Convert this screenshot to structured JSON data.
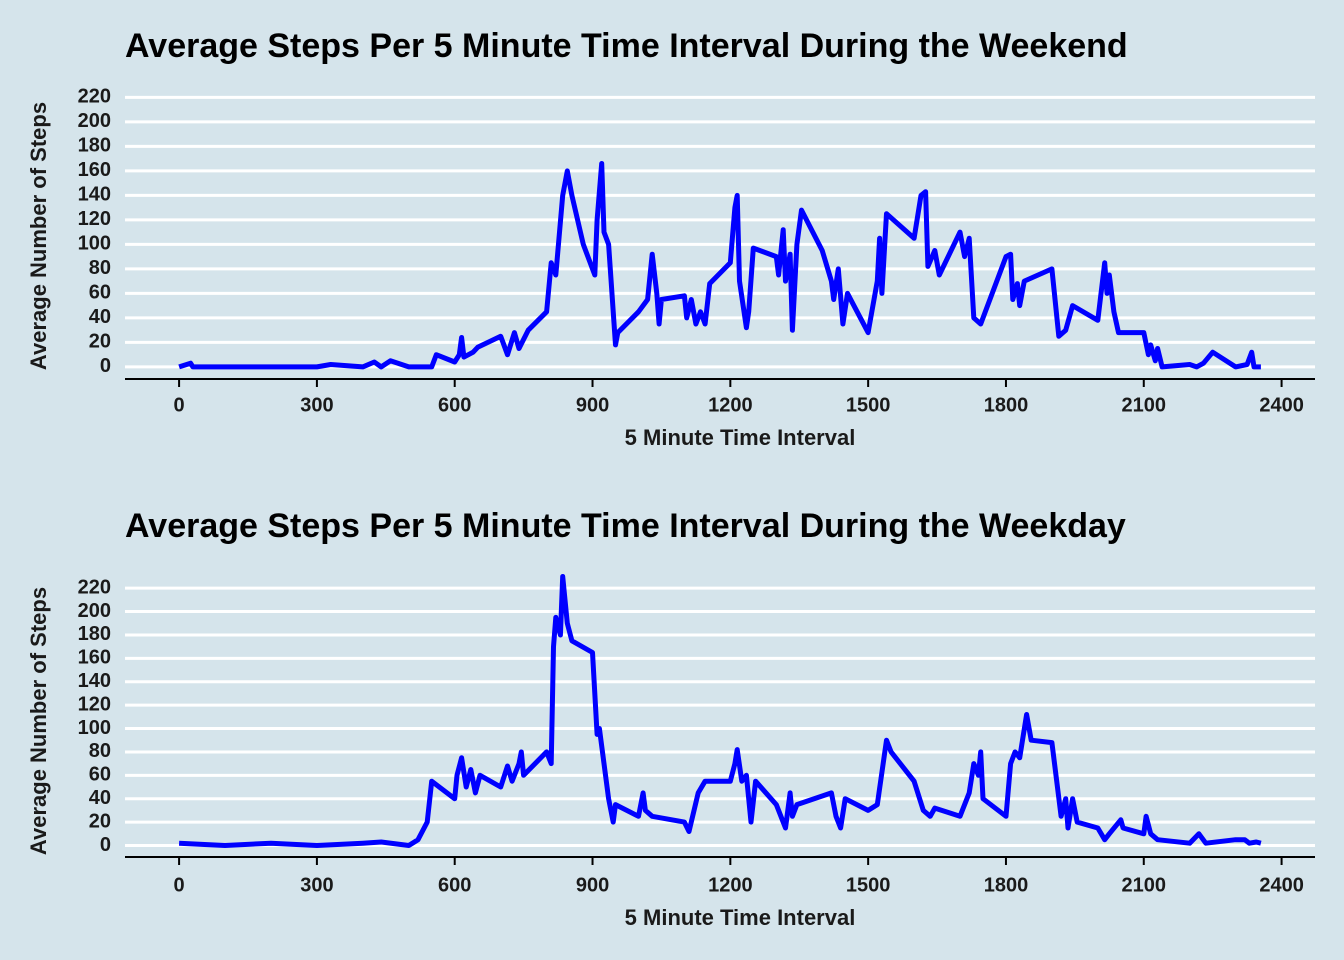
{
  "chart_data": [
    {
      "type": "line",
      "title": "Average Steps Per 5 Minute Time Interval During the Weekend",
      "xlabel": "5 Minute Time Interval",
      "ylabel": "Average Number of Steps",
      "color": "#0000ff",
      "grid": true,
      "xlim": [
        -117.75,
        2472.75
      ],
      "ylim": [
        -11.5,
        241.5
      ],
      "xticks": [
        0,
        300,
        600,
        900,
        1200,
        1500,
        1800,
        2100,
        2400
      ],
      "yticks": [
        0,
        20,
        40,
        60,
        80,
        100,
        120,
        140,
        160,
        180,
        200,
        220
      ],
      "x": [
        0,
        25,
        30,
        100,
        300,
        330,
        400,
        425,
        440,
        460,
        500,
        550,
        560,
        600,
        610,
        615,
        620,
        640,
        650,
        700,
        715,
        730,
        740,
        760,
        800,
        810,
        820,
        835,
        845,
        855,
        880,
        905,
        910,
        920,
        925,
        935,
        950,
        955,
        1000,
        1020,
        1030,
        1040,
        1045,
        1050,
        1100,
        1105,
        1115,
        1125,
        1135,
        1145,
        1155,
        1200,
        1210,
        1215,
        1220,
        1235,
        1240,
        1250,
        1300,
        1305,
        1315,
        1320,
        1330,
        1335,
        1345,
        1355,
        1400,
        1420,
        1425,
        1435,
        1445,
        1455,
        1500,
        1520,
        1525,
        1530,
        1540,
        1600,
        1615,
        1625,
        1630,
        1645,
        1655,
        1700,
        1710,
        1720,
        1730,
        1745,
        1800,
        1810,
        1815,
        1825,
        1830,
        1840,
        1900,
        1915,
        1930,
        1945,
        2000,
        2015,
        2020,
        2025,
        2035,
        2045,
        2100,
        2110,
        2115,
        2125,
        2130,
        2140,
        2200,
        2215,
        2230,
        2250,
        2300,
        2325,
        2335,
        2340,
        2355
      ],
      "values": [
        0,
        3,
        0,
        0,
        0,
        2,
        0,
        4,
        0,
        5,
        0,
        0,
        10,
        4,
        10,
        24,
        8,
        12,
        16,
        25,
        10,
        28,
        15,
        30,
        45,
        85,
        75,
        140,
        160,
        140,
        100,
        75,
        120,
        166,
        110,
        100,
        18,
        28,
        45,
        55,
        92,
        60,
        35,
        55,
        58,
        40,
        55,
        35,
        45,
        35,
        68,
        85,
        130,
        140,
        70,
        32,
        45,
        97,
        90,
        75,
        112,
        70,
        92,
        30,
        100,
        128,
        95,
        70,
        55,
        80,
        35,
        60,
        28,
        70,
        105,
        60,
        125,
        105,
        140,
        143,
        82,
        95,
        75,
        110,
        90,
        105,
        40,
        35,
        90,
        92,
        55,
        68,
        50,
        70,
        80,
        25,
        30,
        50,
        38,
        85,
        60,
        75,
        45,
        28,
        28,
        10,
        18,
        5,
        15,
        0,
        2,
        0,
        3,
        12,
        0,
        2,
        12,
        0,
        0
      ]
    },
    {
      "type": "line",
      "title": "Average Steps Per 5 Minute Time Interval During the Weekday",
      "xlabel": "5 Minute Time Interval",
      "ylabel": "Average Number of Steps",
      "color": "#0000ff",
      "grid": true,
      "xlim": [
        -117.75,
        2472.75
      ],
      "ylim": [
        -11.5,
        241.5
      ],
      "xticks": [
        0,
        300,
        600,
        900,
        1200,
        1500,
        1800,
        2100,
        2400
      ],
      "yticks": [
        0,
        20,
        40,
        60,
        80,
        100,
        120,
        140,
        160,
        180,
        200,
        220
      ],
      "x": [
        0,
        100,
        200,
        300,
        400,
        440,
        500,
        520,
        540,
        550,
        600,
        605,
        615,
        625,
        635,
        645,
        655,
        700,
        715,
        725,
        740,
        745,
        750,
        800,
        810,
        815,
        820,
        830,
        835,
        845,
        855,
        900,
        910,
        915,
        920,
        935,
        945,
        950,
        1000,
        1010,
        1015,
        1030,
        1100,
        1110,
        1130,
        1145,
        1200,
        1210,
        1215,
        1225,
        1235,
        1245,
        1255,
        1300,
        1320,
        1330,
        1335,
        1345,
        1420,
        1430,
        1440,
        1450,
        1500,
        1520,
        1540,
        1550,
        1600,
        1620,
        1635,
        1645,
        1700,
        1720,
        1730,
        1740,
        1745,
        1750,
        1800,
        1810,
        1820,
        1830,
        1845,
        1855,
        1900,
        1920,
        1930,
        1935,
        1945,
        1955,
        2000,
        2015,
        2025,
        2050,
        2055,
        2100,
        2105,
        2115,
        2130,
        2200,
        2220,
        2235,
        2300,
        2320,
        2330,
        2345,
        2355
      ],
      "values": [
        2,
        0,
        2,
        0,
        2,
        3,
        0,
        5,
        20,
        55,
        40,
        60,
        75,
        50,
        65,
        45,
        60,
        50,
        68,
        55,
        70,
        80,
        60,
        80,
        70,
        170,
        195,
        180,
        230,
        190,
        175,
        165,
        95,
        100,
        85,
        40,
        20,
        35,
        25,
        45,
        30,
        25,
        20,
        12,
        45,
        55,
        55,
        70,
        82,
        55,
        60,
        20,
        55,
        35,
        15,
        45,
        25,
        35,
        45,
        25,
        15,
        40,
        30,
        35,
        90,
        80,
        55,
        30,
        25,
        32,
        25,
        45,
        70,
        60,
        80,
        40,
        25,
        70,
        80,
        75,
        112,
        90,
        88,
        25,
        40,
        15,
        40,
        20,
        15,
        5,
        10,
        22,
        15,
        10,
        25,
        10,
        5,
        2,
        10,
        2,
        5,
        5,
        2,
        3,
        2
      ]
    }
  ]
}
